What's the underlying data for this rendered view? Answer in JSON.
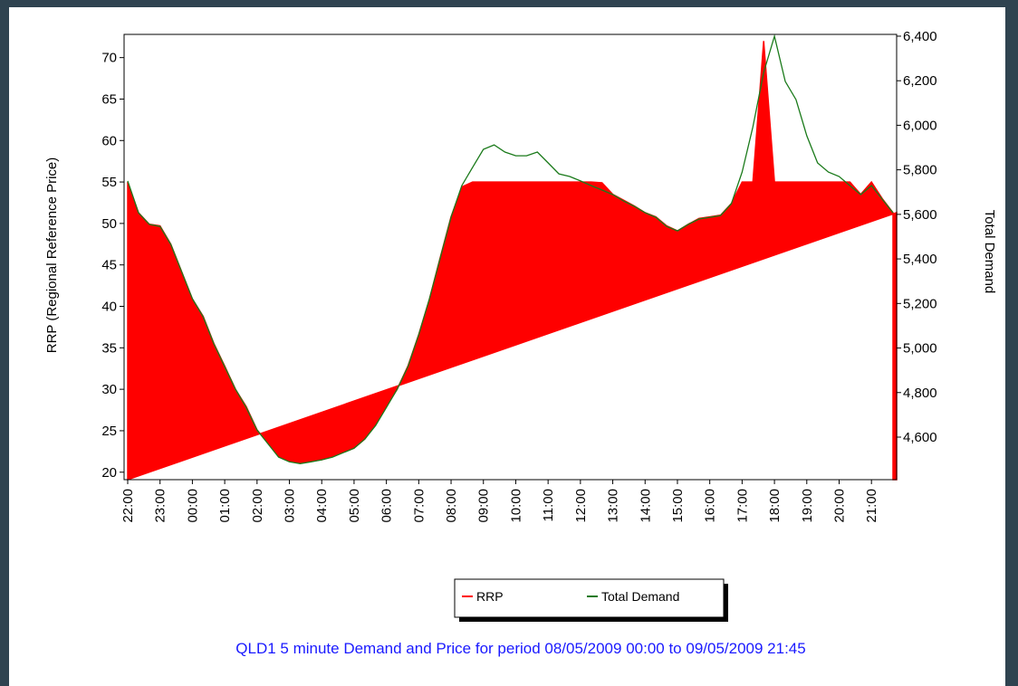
{
  "chart_data": {
    "type": "line",
    "title": "QLD1 5 minute Demand and Price for period 08/05/2009 00:00 to 09/05/2009 21:45",
    "y_label": "RRP (Regional Reference Price)",
    "y2_label": "Total Demand",
    "categories": [
      "22:00",
      null,
      null,
      "23:00",
      null,
      null,
      "00:00",
      null,
      null,
      "01:00",
      null,
      null,
      "02:00",
      null,
      null,
      "03:00",
      null,
      null,
      "04:00",
      null,
      null,
      "05:00",
      null,
      null,
      "06:00",
      null,
      null,
      "07:00",
      null,
      null,
      "08:00",
      null,
      null,
      "09:00",
      null,
      null,
      "10:00",
      null,
      null,
      "11:00",
      null,
      null,
      "12:00",
      null,
      null,
      "13:00",
      null,
      null,
      "14:00",
      null,
      null,
      "15:00",
      null,
      null,
      "16:00",
      null,
      null,
      "17:00",
      null,
      null,
      "18:00",
      null,
      null,
      "19:00",
      null,
      null,
      "20:00",
      null,
      null,
      "21:00",
      null,
      null
    ],
    "series": [
      {
        "name": "RRP",
        "type": "area",
        "color": "#ff0000",
        "values": [
          55,
          51.3,
          49.9,
          49.7,
          47.5,
          44.2,
          40.9,
          38.8,
          35.5,
          32.8,
          30.0,
          27.9,
          25.1,
          23.5,
          21.9,
          21.3,
          21.1,
          21.3,
          21.5,
          21.9,
          22.4,
          22.9,
          24.0,
          25.7,
          27.9,
          30.0,
          32.8,
          36.6,
          40.9,
          45.9,
          50.8,
          54.4,
          55,
          55,
          55,
          55,
          55,
          55,
          55,
          55,
          55,
          55,
          55,
          55,
          54.9,
          53.5,
          52.8,
          52.1,
          51.3,
          50.8,
          49.7,
          49.1,
          49.9,
          50.6,
          50.8,
          51.0,
          52.4,
          55,
          55,
          72,
          55,
          55,
          55,
          55,
          55,
          55,
          55,
          55,
          53.5,
          55,
          53.0,
          51.3
        ]
      },
      {
        "name": "Total Demand",
        "type": "line",
        "axis": "y2",
        "color": "#1a7a1a",
        "values": [
          5750,
          5607,
          5555,
          5546,
          5465,
          5343,
          5221,
          5140,
          5018,
          4916,
          4815,
          4733,
          4632,
          4571,
          4510,
          4489,
          4481,
          4489,
          4498,
          4510,
          4530,
          4550,
          4591,
          4652,
          4733,
          4815,
          4916,
          5059,
          5221,
          5404,
          5587,
          5729,
          5811,
          5892,
          5912,
          5880,
          5863,
          5863,
          5880,
          5831,
          5782,
          5770,
          5750,
          5729,
          5709,
          5689,
          5660,
          5636,
          5607,
          5587,
          5546,
          5526,
          5555,
          5579,
          5587,
          5595,
          5648,
          5790,
          5993,
          6237,
          6400,
          6197,
          6115,
          5953,
          5831,
          5790,
          5770,
          5729,
          5689,
          5729,
          5668,
          5607
        ]
      }
    ],
    "ylim": [
      19.1,
      72.8
    ],
    "yticks": [
      20,
      25,
      30,
      35,
      40,
      45,
      50,
      55,
      60,
      65,
      70
    ],
    "y2lim": [
      4409,
      6408
    ],
    "y2ticks": [
      {
        "value": 4600,
        "label": "4,600"
      },
      {
        "value": 4800,
        "label": "4,800"
      },
      {
        "value": 5000,
        "label": "5,000"
      },
      {
        "value": 5200,
        "label": "5,200"
      },
      {
        "value": 5400,
        "label": "5,400"
      },
      {
        "value": 5600,
        "label": "5,600"
      },
      {
        "value": 5800,
        "label": "5,800"
      },
      {
        "value": 6000,
        "label": "6,000"
      },
      {
        "value": 6200,
        "label": "6,200"
      },
      {
        "value": 6400,
        "label": "6,400"
      }
    ]
  }
}
